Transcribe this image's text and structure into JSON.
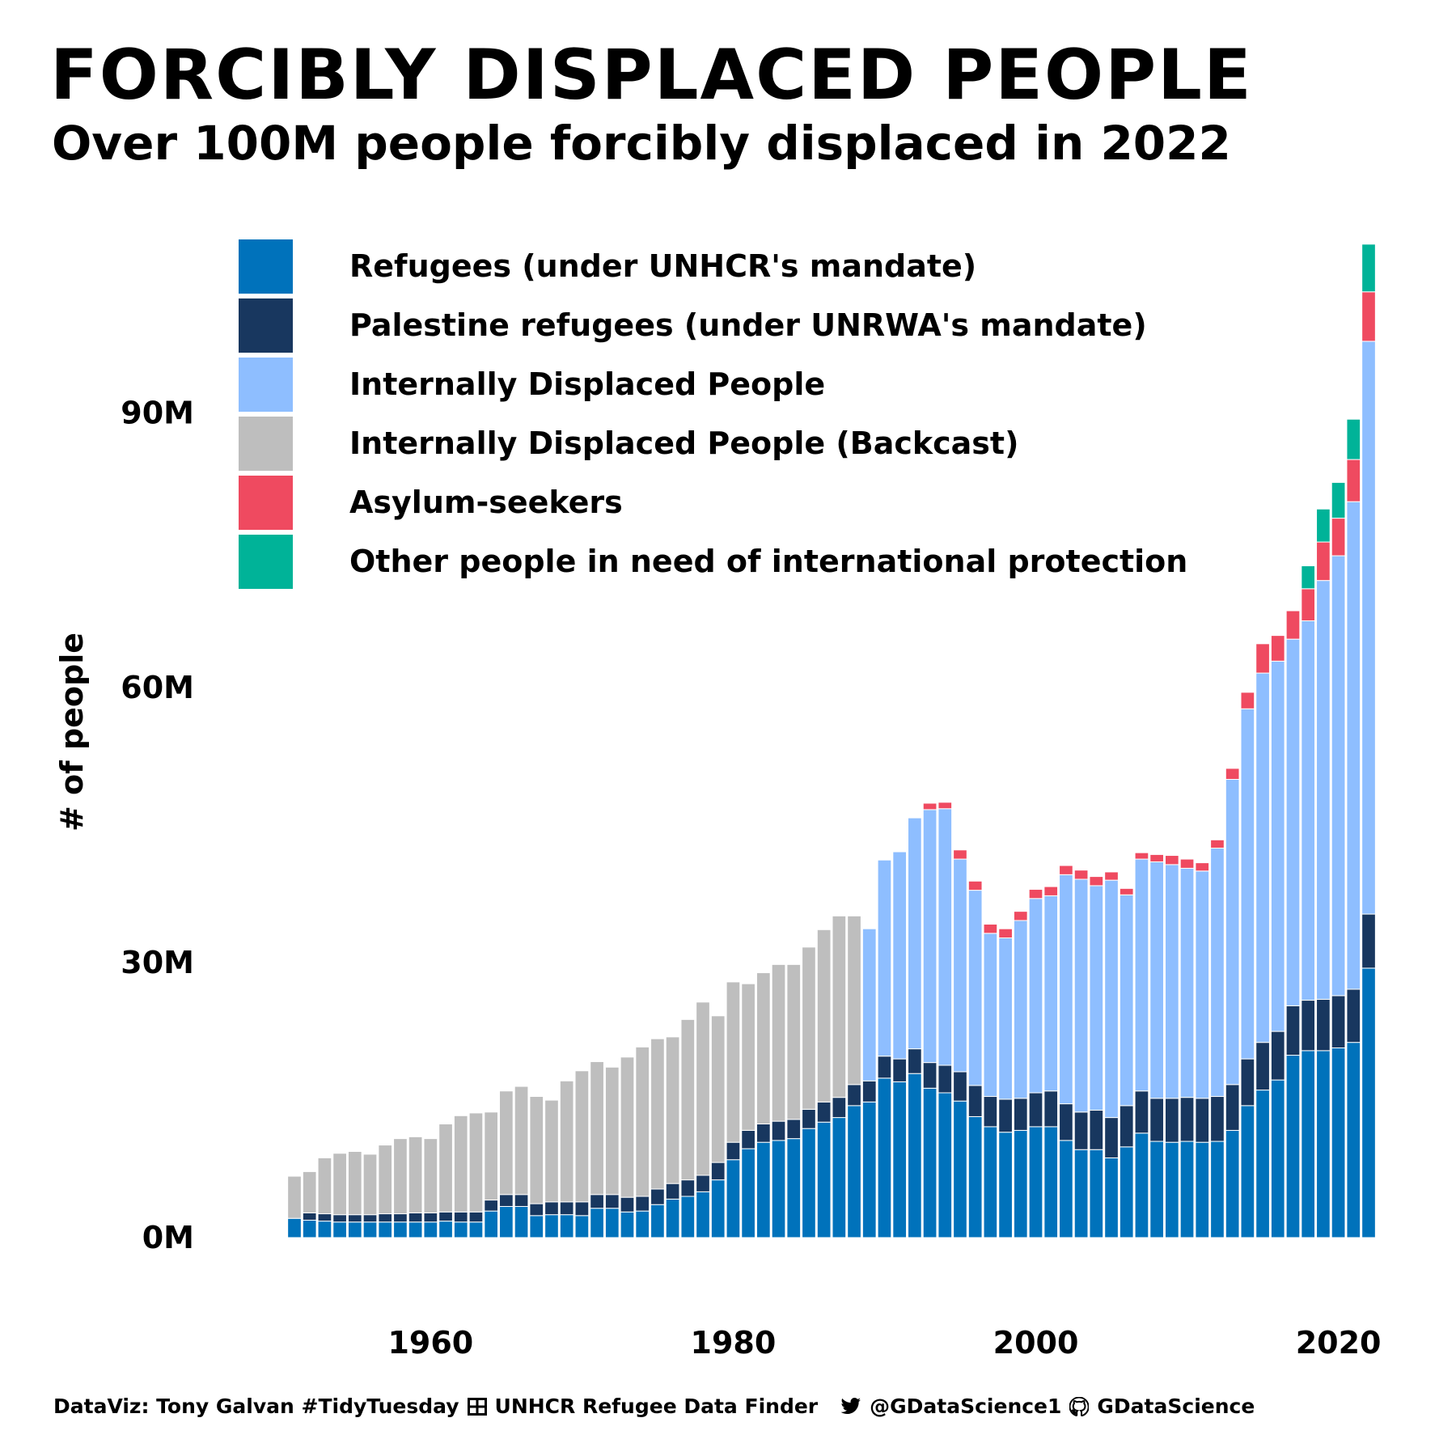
{
  "header": {
    "title": "FORCIBLY DISPLACED PEOPLE",
    "subtitle": "Over 100M people forcibly displaced in 2022"
  },
  "caption": {
    "part1": "DataViz: Tony Galvan #TidyTuesday",
    "part2": "UNHCR Refugee Data Finder",
    "part3": "@GDataScience1",
    "part4": "GDataScience",
    "icons": [
      "table-icon",
      "twitter-bird-icon",
      "github-icon"
    ]
  },
  "chart_data": {
    "type": "bar",
    "stacked": true,
    "title": "FORCIBLY DISPLACED PEOPLE",
    "subtitle": "Over 100M people forcibly displaced in 2022",
    "xlabel": "",
    "ylabel": "# of people",
    "ylim": [
      0,
      105
    ],
    "y_ticks": [
      0,
      30,
      60,
      90
    ],
    "y_tick_labels": [
      "0M",
      "30M",
      "60M",
      "90M"
    ],
    "y_unit": "millions",
    "x_ticks": [
      1960,
      1980,
      2000,
      2020
    ],
    "x_tick_labels": [
      "1960",
      "1980",
      "2000",
      "2020"
    ],
    "grid": false,
    "legend_position": "top-left",
    "categories": [
      1951,
      1952,
      1953,
      1954,
      1955,
      1956,
      1957,
      1958,
      1959,
      1960,
      1961,
      1962,
      1963,
      1964,
      1965,
      1966,
      1967,
      1968,
      1969,
      1970,
      1971,
      1972,
      1973,
      1974,
      1975,
      1976,
      1977,
      1978,
      1979,
      1980,
      1981,
      1982,
      1983,
      1984,
      1985,
      1986,
      1987,
      1988,
      1989,
      1990,
      1991,
      1992,
      1993,
      1994,
      1995,
      1996,
      1997,
      1998,
      1999,
      2000,
      2001,
      2002,
      2003,
      2004,
      2005,
      2006,
      2007,
      2008,
      2009,
      2010,
      2011,
      2012,
      2013,
      2014,
      2015,
      2016,
      2017,
      2018,
      2019,
      2020,
      2021,
      2022
    ],
    "series": [
      {
        "name": "Refugees (under UNHCR's mandate)",
        "color": "#0072bb",
        "values": [
          2.1,
          1.9,
          1.8,
          1.7,
          1.7,
          1.7,
          1.7,
          1.7,
          1.7,
          1.7,
          1.8,
          1.7,
          1.7,
          2.9,
          3.4,
          3.4,
          2.4,
          2.5,
          2.5,
          2.4,
          3.2,
          3.2,
          2.8,
          2.9,
          3.6,
          4.2,
          4.5,
          5.0,
          6.3,
          8.5,
          9.7,
          10.4,
          10.6,
          10.8,
          11.9,
          12.6,
          13.1,
          14.4,
          14.8,
          17.4,
          17.0,
          17.9,
          16.3,
          15.8,
          14.9,
          13.2,
          12.1,
          11.5,
          11.7,
          12.1,
          12.1,
          10.6,
          9.6,
          9.6,
          8.7,
          9.9,
          11.4,
          10.5,
          10.4,
          10.5,
          10.4,
          10.5,
          11.7,
          14.4,
          16.1,
          17.2,
          19.9,
          20.4,
          20.4,
          20.7,
          21.3,
          29.4
        ]
      },
      {
        "name": "Palestine refugees (under UNRWA's mandate)",
        "color": "#18375f",
        "values": [
          0,
          0.8,
          0.8,
          0.8,
          0.8,
          0.8,
          0.9,
          0.9,
          1.0,
          1.0,
          1.0,
          1.1,
          1.1,
          1.2,
          1.3,
          1.3,
          1.3,
          1.4,
          1.4,
          1.5,
          1.5,
          1.5,
          1.6,
          1.6,
          1.7,
          1.7,
          1.8,
          1.8,
          1.9,
          1.9,
          2.0,
          2.0,
          2.1,
          2.1,
          2.1,
          2.2,
          2.2,
          2.3,
          2.3,
          2.4,
          2.5,
          2.7,
          2.8,
          3.0,
          3.2,
          3.4,
          3.3,
          3.6,
          3.5,
          3.7,
          3.9,
          4.0,
          4.1,
          4.3,
          4.4,
          4.5,
          4.6,
          4.7,
          4.8,
          4.8,
          4.8,
          4.9,
          5.0,
          5.1,
          5.2,
          5.3,
          5.4,
          5.5,
          5.6,
          5.7,
          5.8,
          5.9
        ]
      },
      {
        "name": "Internally Displaced People",
        "color": "#8ebeff",
        "values": [
          0,
          0,
          0,
          0,
          0,
          0,
          0,
          0,
          0,
          0,
          0,
          0,
          0,
          0,
          0,
          0,
          0,
          0,
          0,
          0,
          0,
          0,
          0,
          0,
          0,
          0,
          0,
          0,
          0,
          0,
          0,
          0,
          0,
          0,
          0,
          0,
          0,
          0,
          16.6,
          21.4,
          22.6,
          25.2,
          27.6,
          28.0,
          23.2,
          21.3,
          17.8,
          17.6,
          19.4,
          21.2,
          21.3,
          25.0,
          25.4,
          24.5,
          25.9,
          23.0,
          25.3,
          25.8,
          25.5,
          25.0,
          24.8,
          27.1,
          33.3,
          38.2,
          40.3,
          40.4,
          40.0,
          41.4,
          45.7,
          48.0,
          53.2,
          62.5
        ]
      },
      {
        "name": "Internally Displaced People (Backcast)",
        "color": "#bebebe",
        "values": [
          4.6,
          4.5,
          6.1,
          6.7,
          6.9,
          6.6,
          7.5,
          8.2,
          8.3,
          8.1,
          9.6,
          10.5,
          10.8,
          9.6,
          11.3,
          11.8,
          11.7,
          11.1,
          13.2,
          14.3,
          14.5,
          13.9,
          15.3,
          16.3,
          16.4,
          16.0,
          17.5,
          18.9,
          16.0,
          17.5,
          16.0,
          16.5,
          17.1,
          16.9,
          17.7,
          18.8,
          19.8,
          18.4,
          0,
          0,
          0,
          0,
          0,
          0,
          0,
          0,
          0,
          0,
          0,
          0,
          0,
          0,
          0,
          0,
          0,
          0,
          0,
          0,
          0,
          0,
          0,
          0,
          0,
          0,
          0,
          0,
          0,
          0,
          0,
          0,
          0,
          0
        ]
      },
      {
        "name": "Asylum-seekers",
        "color": "#ef4a60",
        "values": [
          0,
          0,
          0,
          0,
          0,
          0,
          0,
          0,
          0,
          0,
          0,
          0,
          0,
          0,
          0,
          0,
          0,
          0,
          0,
          0,
          0,
          0,
          0,
          0,
          0,
          0,
          0,
          0,
          0,
          0,
          0,
          0,
          0,
          0,
          0,
          0,
          0,
          0,
          0,
          0,
          0,
          0,
          0.7,
          0.7,
          1.0,
          1.0,
          1.0,
          1.0,
          1.0,
          1.0,
          1.0,
          1.0,
          1.0,
          1.0,
          0.9,
          0.7,
          0.7,
          0.8,
          1.0,
          1.0,
          0.9,
          0.9,
          1.2,
          1.8,
          3.2,
          2.8,
          3.1,
          3.5,
          4.2,
          4.1,
          4.6,
          5.4
        ]
      },
      {
        "name": "Other people in need of international protection",
        "color": "#00b398",
        "values": [
          0,
          0,
          0,
          0,
          0,
          0,
          0,
          0,
          0,
          0,
          0,
          0,
          0,
          0,
          0,
          0,
          0,
          0,
          0,
          0,
          0,
          0,
          0,
          0,
          0,
          0,
          0,
          0,
          0,
          0,
          0,
          0,
          0,
          0,
          0,
          0,
          0,
          0,
          0,
          0,
          0,
          0,
          0,
          0,
          0,
          0,
          0,
          0,
          0,
          0,
          0,
          0,
          0,
          0,
          0,
          0,
          0,
          0,
          0,
          0,
          0,
          0,
          0,
          0,
          0,
          0,
          0,
          2.5,
          3.6,
          3.9,
          4.4,
          5.2
        ]
      }
    ]
  }
}
